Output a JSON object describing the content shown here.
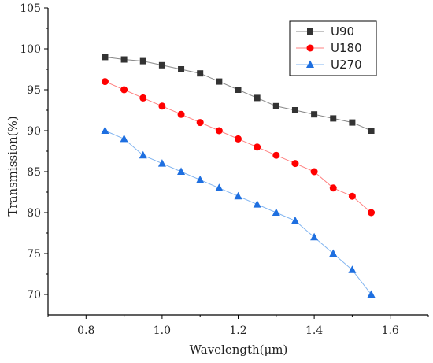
{
  "chart_data": {
    "type": "line",
    "xlabel": "Wavelength(μm)",
    "ylabel": "Transmission(%)",
    "xlim": [
      0.7,
      1.7
    ],
    "ylim": [
      67.5,
      105
    ],
    "x_ticks": [
      0.8,
      1.0,
      1.2,
      1.4,
      1.6
    ],
    "x_tick_labels": [
      "0.8",
      "1.0",
      "1.2",
      "1.4",
      "1.6"
    ],
    "y_ticks": [
      70,
      75,
      80,
      85,
      90,
      95,
      100,
      105
    ],
    "y_tick_labels": [
      "70",
      "75",
      "80",
      "85",
      "90",
      "95",
      "100",
      "105"
    ],
    "grid": false,
    "legend_position": "top-right",
    "x": [
      0.85,
      0.9,
      0.95,
      1.0,
      1.05,
      1.1,
      1.15,
      1.2,
      1.25,
      1.3,
      1.35,
      1.4,
      1.45,
      1.5,
      1.55
    ],
    "series": [
      {
        "name": "U90",
        "marker": "square",
        "color": "#333333",
        "line_color": "#888888",
        "values": [
          99,
          98.7,
          98.5,
          98,
          97.5,
          97,
          96,
          95,
          94,
          93,
          92.5,
          92,
          91.5,
          91,
          90
        ]
      },
      {
        "name": "U180",
        "marker": "circle",
        "color": "#ff0000",
        "line_color": "#ff8080",
        "values": [
          96,
          95,
          94,
          93,
          92,
          91,
          90,
          89,
          88,
          87,
          86,
          85,
          83,
          82,
          80
        ]
      },
      {
        "name": "U270",
        "marker": "triangle",
        "color": "#1e6fe0",
        "line_color": "#80b4f0",
        "values": [
          90,
          89,
          87,
          86,
          85,
          84,
          83,
          82,
          81,
          80,
          79,
          77,
          75,
          73,
          70
        ]
      }
    ]
  }
}
